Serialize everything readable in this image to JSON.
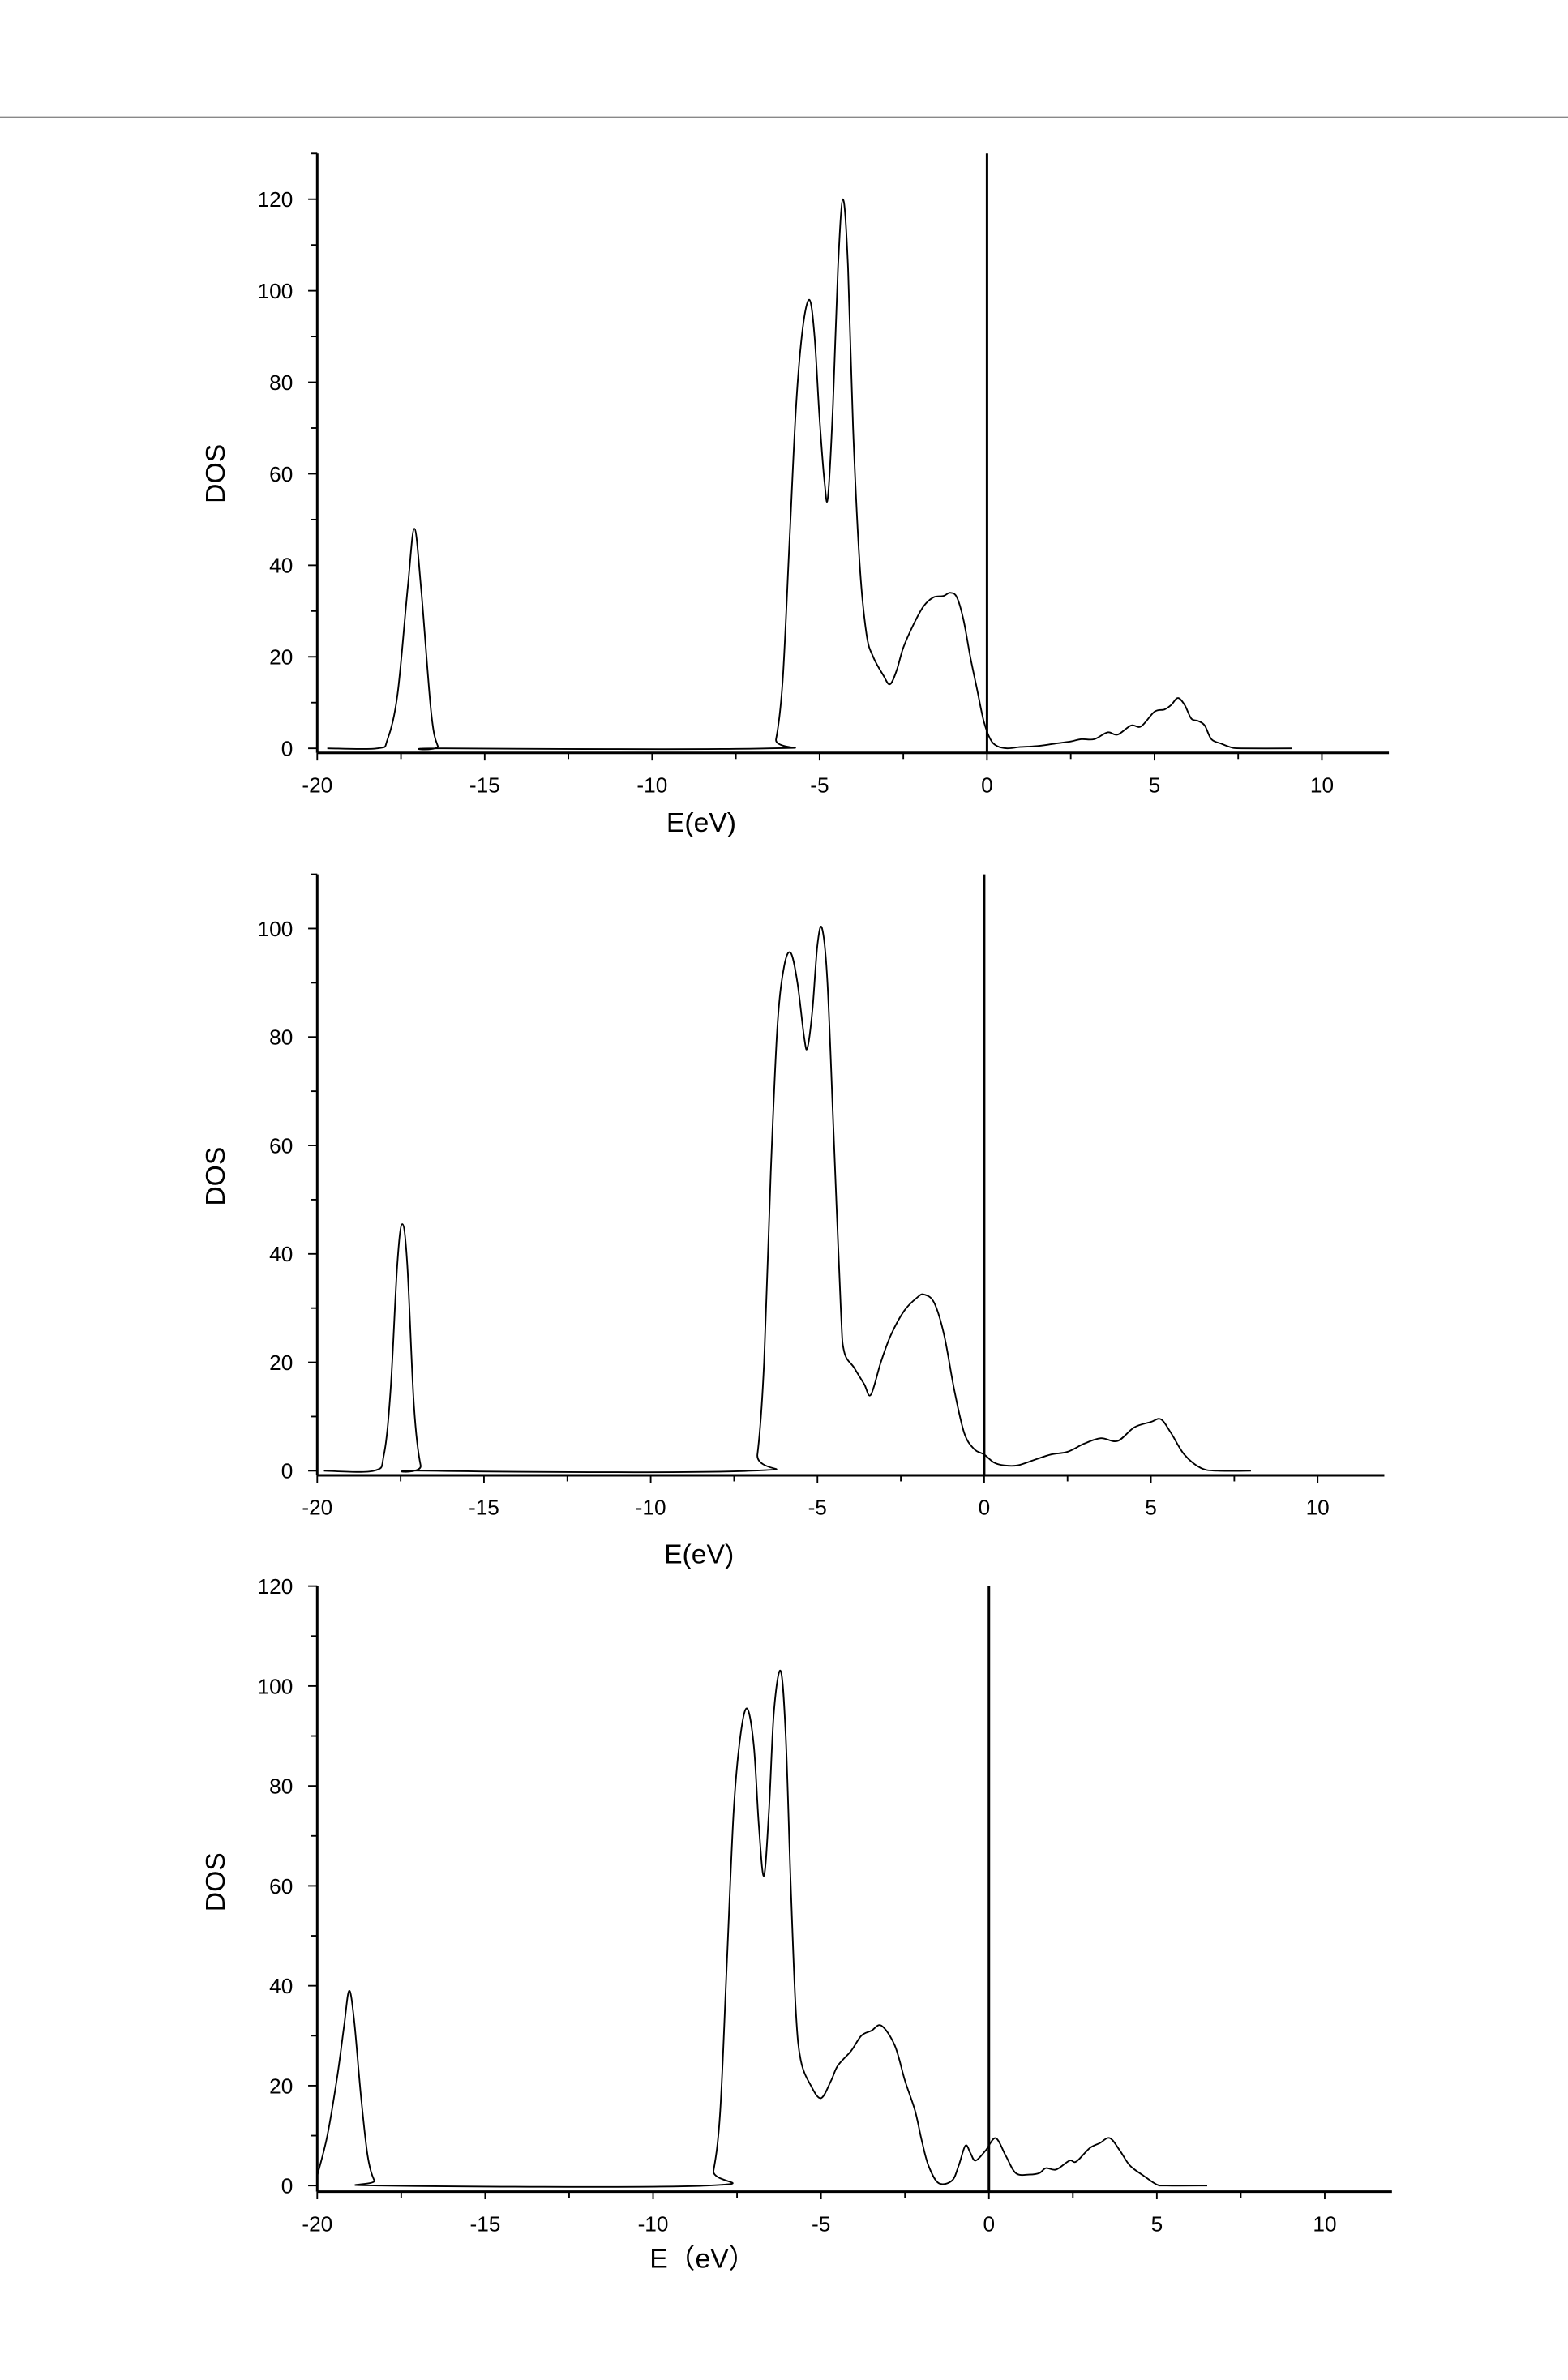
{
  "chart_data": [
    {
      "type": "line",
      "title": "",
      "xlabel": "E(eV)",
      "ylabel": "DOS",
      "xlim": [
        -20,
        12
      ],
      "ylim": [
        0,
        130
      ],
      "xticks": [
        "-20",
        "-15",
        "-10",
        "-5",
        "0",
        "5",
        "10"
      ],
      "yticks": [
        "0",
        "20",
        "40",
        "60",
        "80",
        "100",
        "120"
      ],
      "fermi_line_at": 0,
      "series": [
        {
          "name": "DOS",
          "points": [
            [
              -19.7,
              0
            ],
            [
              -18.2,
              0
            ],
            [
              -17.9,
              2
            ],
            [
              -17.6,
              12
            ],
            [
              -17.3,
              35
            ],
            [
              -17.1,
              48
            ],
            [
              -16.9,
              35
            ],
            [
              -16.6,
              8
            ],
            [
              -16.4,
              0.5
            ],
            [
              -16.2,
              0
            ],
            [
              -6.5,
              0
            ],
            [
              -6.3,
              2
            ],
            [
              -6.1,
              15
            ],
            [
              -5.9,
              45
            ],
            [
              -5.7,
              75
            ],
            [
              -5.5,
              92
            ],
            [
              -5.3,
              98
            ],
            [
              -5.15,
              90
            ],
            [
              -5.0,
              72
            ],
            [
              -4.85,
              58
            ],
            [
              -4.75,
              55
            ],
            [
              -4.6,
              75
            ],
            [
              -4.45,
              105
            ],
            [
              -4.3,
              120
            ],
            [
              -4.15,
              105
            ],
            [
              -4.0,
              70
            ],
            [
              -3.8,
              40
            ],
            [
              -3.6,
              25
            ],
            [
              -3.4,
              20
            ],
            [
              -3.1,
              16
            ],
            [
              -2.9,
              14
            ],
            [
              -2.7,
              17
            ],
            [
              -2.5,
              22
            ],
            [
              -2.2,
              27
            ],
            [
              -1.9,
              31
            ],
            [
              -1.6,
              33
            ],
            [
              -1.3,
              33.3
            ],
            [
              -1.1,
              34
            ],
            [
              -0.9,
              33
            ],
            [
              -0.7,
              28
            ],
            [
              -0.5,
              20
            ],
            [
              -0.3,
              13
            ],
            [
              -0.1,
              6
            ],
            [
              0.1,
              2
            ],
            [
              0.3,
              0.5
            ],
            [
              0.6,
              0
            ],
            [
              1.0,
              0.3
            ],
            [
              1.5,
              0.5
            ],
            [
              2,
              1
            ],
            [
              2.5,
              1.5
            ],
            [
              2.8,
              2
            ],
            [
              3.2,
              2
            ],
            [
              3.6,
              3.5
            ],
            [
              3.9,
              3
            ],
            [
              4.3,
              5
            ],
            [
              4.6,
              4.8
            ],
            [
              5,
              8
            ],
            [
              5.3,
              8.5
            ],
            [
              5.5,
              9.5
            ],
            [
              5.7,
              11
            ],
            [
              5.9,
              9.5
            ],
            [
              6.1,
              6.5
            ],
            [
              6.3,
              6
            ],
            [
              6.5,
              5
            ],
            [
              6.7,
              2
            ],
            [
              7,
              1
            ],
            [
              7.3,
              0.2
            ],
            [
              7.6,
              0
            ],
            [
              9.1,
              0
            ]
          ]
        }
      ]
    },
    {
      "type": "line",
      "title": "",
      "xlabel": "E(eV)",
      "ylabel": "DOS",
      "xlim": [
        -20,
        12
      ],
      "ylim": [
        0,
        110
      ],
      "xticks": [
        "-20",
        "-15",
        "-10",
        "-5",
        "0",
        "5",
        "10"
      ],
      "yticks": [
        "0",
        "20",
        "40",
        "60",
        "80",
        "100"
      ],
      "fermi_line_at": 0,
      "series": [
        {
          "name": "DOS",
          "points": [
            [
              -19.8,
              0
            ],
            [
              -18.3,
              0
            ],
            [
              -18.0,
              3
            ],
            [
              -17.8,
              15
            ],
            [
              -17.6,
              38
            ],
            [
              -17.45,
              45.5
            ],
            [
              -17.3,
              38
            ],
            [
              -17.1,
              12
            ],
            [
              -16.9,
              1
            ],
            [
              -16.7,
              0
            ],
            [
              -7.0,
              0
            ],
            [
              -6.8,
              3
            ],
            [
              -6.6,
              20
            ],
            [
              -6.4,
              55
            ],
            [
              -6.2,
              82
            ],
            [
              -6.0,
              93
            ],
            [
              -5.8,
              95.5
            ],
            [
              -5.6,
              90
            ],
            [
              -5.4,
              80
            ],
            [
              -5.3,
              78
            ],
            [
              -5.15,
              85
            ],
            [
              -5.0,
              97
            ],
            [
              -4.86,
              100
            ],
            [
              -4.7,
              90
            ],
            [
              -4.5,
              60
            ],
            [
              -4.3,
              30
            ],
            [
              -4.2,
              22
            ],
            [
              -3.9,
              19
            ],
            [
              -3.6,
              16
            ],
            [
              -3.4,
              14
            ],
            [
              -3.1,
              20
            ],
            [
              -2.8,
              25
            ],
            [
              -2.4,
              29.5
            ],
            [
              -2.0,
              32
            ],
            [
              -1.8,
              32.5
            ],
            [
              -1.5,
              31
            ],
            [
              -1.2,
              25
            ],
            [
              -0.9,
              15
            ],
            [
              -0.6,
              7
            ],
            [
              -0.3,
              4
            ],
            [
              0,
              3
            ],
            [
              0.3,
              1.5
            ],
            [
              0.6,
              1
            ],
            [
              1,
              1
            ],
            [
              1.5,
              2
            ],
            [
              2,
              3
            ],
            [
              2.5,
              3.5
            ],
            [
              3,
              5
            ],
            [
              3.5,
              6
            ],
            [
              4,
              5.5
            ],
            [
              4.5,
              8
            ],
            [
              5,
              9
            ],
            [
              5.3,
              9.5
            ],
            [
              5.6,
              7
            ],
            [
              6,
              3
            ],
            [
              6.5,
              0.5
            ],
            [
              7,
              0
            ],
            [
              8,
              0
            ]
          ]
        }
      ]
    },
    {
      "type": "line",
      "title": "",
      "xlabel": "E（eV）",
      "ylabel": "DOS",
      "xlim": [
        -20,
        12
      ],
      "ylim": [
        0,
        120
      ],
      "xticks": [
        "-20",
        "-15",
        "-10",
        "-5",
        "0",
        "5",
        "10"
      ],
      "yticks": [
        "0",
        "20",
        "40",
        "60",
        "80",
        "100",
        "120"
      ],
      "fermi_line_at": 0,
      "series": [
        {
          "name": "DOS",
          "points": [
            [
              -20,
              2
            ],
            [
              -19.7,
              10
            ],
            [
              -19.4,
              22
            ],
            [
              -19.2,
              32
            ],
            [
              -19.05,
              39
            ],
            [
              -18.9,
              33
            ],
            [
              -18.7,
              18
            ],
            [
              -18.5,
              6
            ],
            [
              -18.3,
              1
            ],
            [
              -18.1,
              0
            ],
            [
              -8.4,
              0
            ],
            [
              -8.2,
              3
            ],
            [
              -8.0,
              15
            ],
            [
              -7.8,
              45
            ],
            [
              -7.6,
              75
            ],
            [
              -7.4,
              90
            ],
            [
              -7.2,
              95.5
            ],
            [
              -7.0,
              88
            ],
            [
              -6.85,
              72
            ],
            [
              -6.7,
              62
            ],
            [
              -6.55,
              75
            ],
            [
              -6.4,
              95
            ],
            [
              -6.2,
              103
            ],
            [
              -6.05,
              90
            ],
            [
              -5.9,
              60
            ],
            [
              -5.75,
              35
            ],
            [
              -5.6,
              25
            ],
            [
              -5.3,
              20
            ],
            [
              -5.0,
              17.5
            ],
            [
              -4.7,
              21
            ],
            [
              -4.5,
              24
            ],
            [
              -4.1,
              27
            ],
            [
              -3.8,
              30
            ],
            [
              -3.5,
              31
            ],
            [
              -3.2,
              32
            ],
            [
              -2.8,
              28
            ],
            [
              -2.5,
              21
            ],
            [
              -2.2,
              15
            ],
            [
              -2.0,
              9
            ],
            [
              -1.8,
              4
            ],
            [
              -1.5,
              0.5
            ],
            [
              -1.1,
              1
            ],
            [
              -0.9,
              4
            ],
            [
              -0.7,
              8
            ],
            [
              -0.55,
              6.5
            ],
            [
              -0.4,
              5
            ],
            [
              -0.1,
              7
            ],
            [
              0.2,
              9.5
            ],
            [
              0.5,
              6
            ],
            [
              0.8,
              2.5
            ],
            [
              1.2,
              2.2
            ],
            [
              1.5,
              2.5
            ],
            [
              1.7,
              3.5
            ],
            [
              2.0,
              3.2
            ],
            [
              2.4,
              5
            ],
            [
              2.6,
              4.8
            ],
            [
              3.0,
              7.5
            ],
            [
              3.3,
              8.5
            ],
            [
              3.6,
              9.5
            ],
            [
              3.9,
              7
            ],
            [
              4.2,
              4
            ],
            [
              4.6,
              2
            ],
            [
              5,
              0.2
            ],
            [
              5.3,
              0
            ],
            [
              6.5,
              0
            ]
          ]
        }
      ]
    }
  ]
}
